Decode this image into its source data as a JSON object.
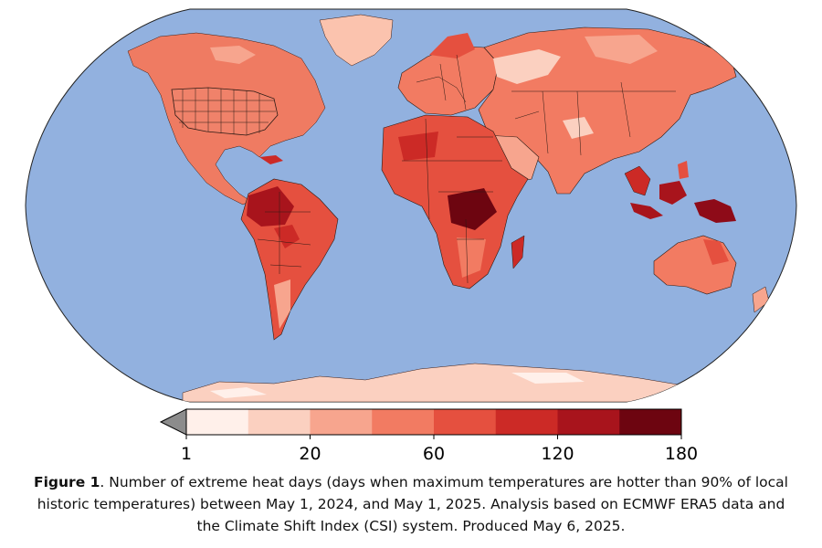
{
  "map": {
    "projection": "robinson",
    "ocean_color": "#92b1df",
    "land_color_default": "#ef7b62",
    "boundary_color": "#2b1a14"
  },
  "colorbar": {
    "colors": [
      "#fff0ea",
      "#fbd0c0",
      "#f7a58e",
      "#f27b62",
      "#e5503f",
      "#cc2a26",
      "#a8141c",
      "#6d0510"
    ],
    "under_color": "#8c8c8c",
    "ticks": [
      {
        "label": "1"
      },
      {
        "label": "20"
      },
      {
        "label": "60"
      },
      {
        "label": "120"
      },
      {
        "label": "180"
      }
    ]
  },
  "caption": {
    "label": "Figure 1",
    "line1": ". Number of extreme heat days (days when maximum temperatures are hotter than 90% of local",
    "line2": "historic temperatures) between May 1, 2024, and May 1, 2025. Analysis based on ECMWF ERA5 data and",
    "line3": "the Climate Shift Index (CSI) system. Produced May 6, 2025."
  }
}
